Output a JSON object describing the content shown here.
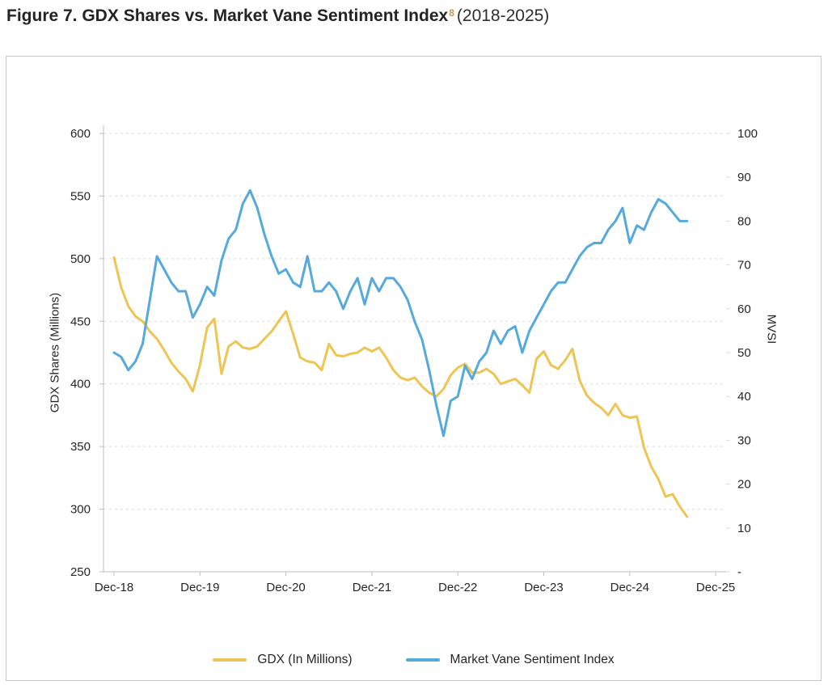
{
  "title": {
    "main": "Figure 7. GDX Shares vs. Market Vane Sentiment Index",
    "superscript": "8",
    "suffix": "(2018-2025)"
  },
  "colors": {
    "gdx_line": "#EEC453",
    "mvsi_line": "#56A9DC",
    "gridline": "#DBDBDB",
    "axis_line": "#BFBFBF",
    "tick_text": "#262626",
    "superscript": "#BE9B52",
    "figure_border": "#C9C9C9"
  },
  "chart_data": {
    "type": "line",
    "title": "Figure 7. GDX Shares vs. Market Vane Sentiment Index (2018-2025)",
    "x_unit": "monthly, Dec-2018 through Aug-2025",
    "x_tick_labels": [
      "Dec-18",
      "Dec-19",
      "Dec-20",
      "Dec-21",
      "Dec-22",
      "Dec-23",
      "Dec-24",
      "Dec-25"
    ],
    "grid": "horizontal dashed gridlines, no vertical grid",
    "legend_position": "bottom center",
    "left_axis": {
      "title": "GDX Shares (Millions)",
      "min": 250,
      "max": 600,
      "tick_labels": [
        "600",
        "550",
        "500",
        "450",
        "400",
        "350",
        "300",
        "250"
      ]
    },
    "right_axis": {
      "title": "MVSI",
      "min": 0,
      "max": 100,
      "tick_labels": [
        "100",
        "90",
        "80",
        "70",
        "60",
        "50",
        "40",
        "30",
        "20",
        "10",
        "-"
      ]
    },
    "series": [
      {
        "name": "GDX (In Millions)",
        "axis": "left",
        "color": "#EEC453",
        "values": [
          501,
          477,
          462,
          454,
          450,
          442,
          436,
          427,
          417,
          410,
          404,
          394,
          415,
          445,
          452,
          408,
          430,
          434,
          429,
          428,
          430,
          436,
          442,
          450,
          458,
          440,
          421,
          418,
          417,
          411,
          432,
          423,
          422,
          424,
          425,
          429,
          426,
          429,
          421,
          411,
          405,
          403,
          405,
          398,
          393,
          390,
          396,
          407,
          413,
          416,
          409,
          409,
          412,
          408,
          400,
          402,
          404,
          399,
          393,
          420,
          426,
          415,
          412,
          419,
          428,
          403,
          391,
          385,
          381,
          375,
          384,
          375,
          373,
          374,
          349,
          334,
          324,
          310,
          312,
          302,
          294
        ]
      },
      {
        "name": "Market Vane Sentiment Index",
        "axis": "right",
        "color": "#56A9DC",
        "values": [
          50,
          49,
          46,
          48,
          52,
          62,
          72,
          69,
          66,
          64,
          64,
          58,
          61,
          65,
          63,
          71,
          76,
          78,
          84,
          87,
          83,
          77,
          72,
          68,
          69,
          66,
          65,
          72,
          64,
          64,
          66,
          64,
          60,
          64,
          67,
          61,
          67,
          64,
          67,
          67,
          65,
          62,
          57,
          53,
          46,
          38,
          31,
          39,
          40,
          47,
          44,
          48,
          50,
          55,
          52,
          55,
          56,
          50,
          55,
          58,
          61,
          64,
          66,
          66,
          69,
          72,
          74,
          75,
          75,
          78,
          80,
          83,
          75,
          79,
          78,
          82,
          85,
          84,
          82,
          80,
          80
        ]
      }
    ]
  },
  "legend": {
    "items": [
      {
        "label": "GDX (In Millions)"
      },
      {
        "label": "Market Vane Sentiment Index"
      }
    ]
  }
}
